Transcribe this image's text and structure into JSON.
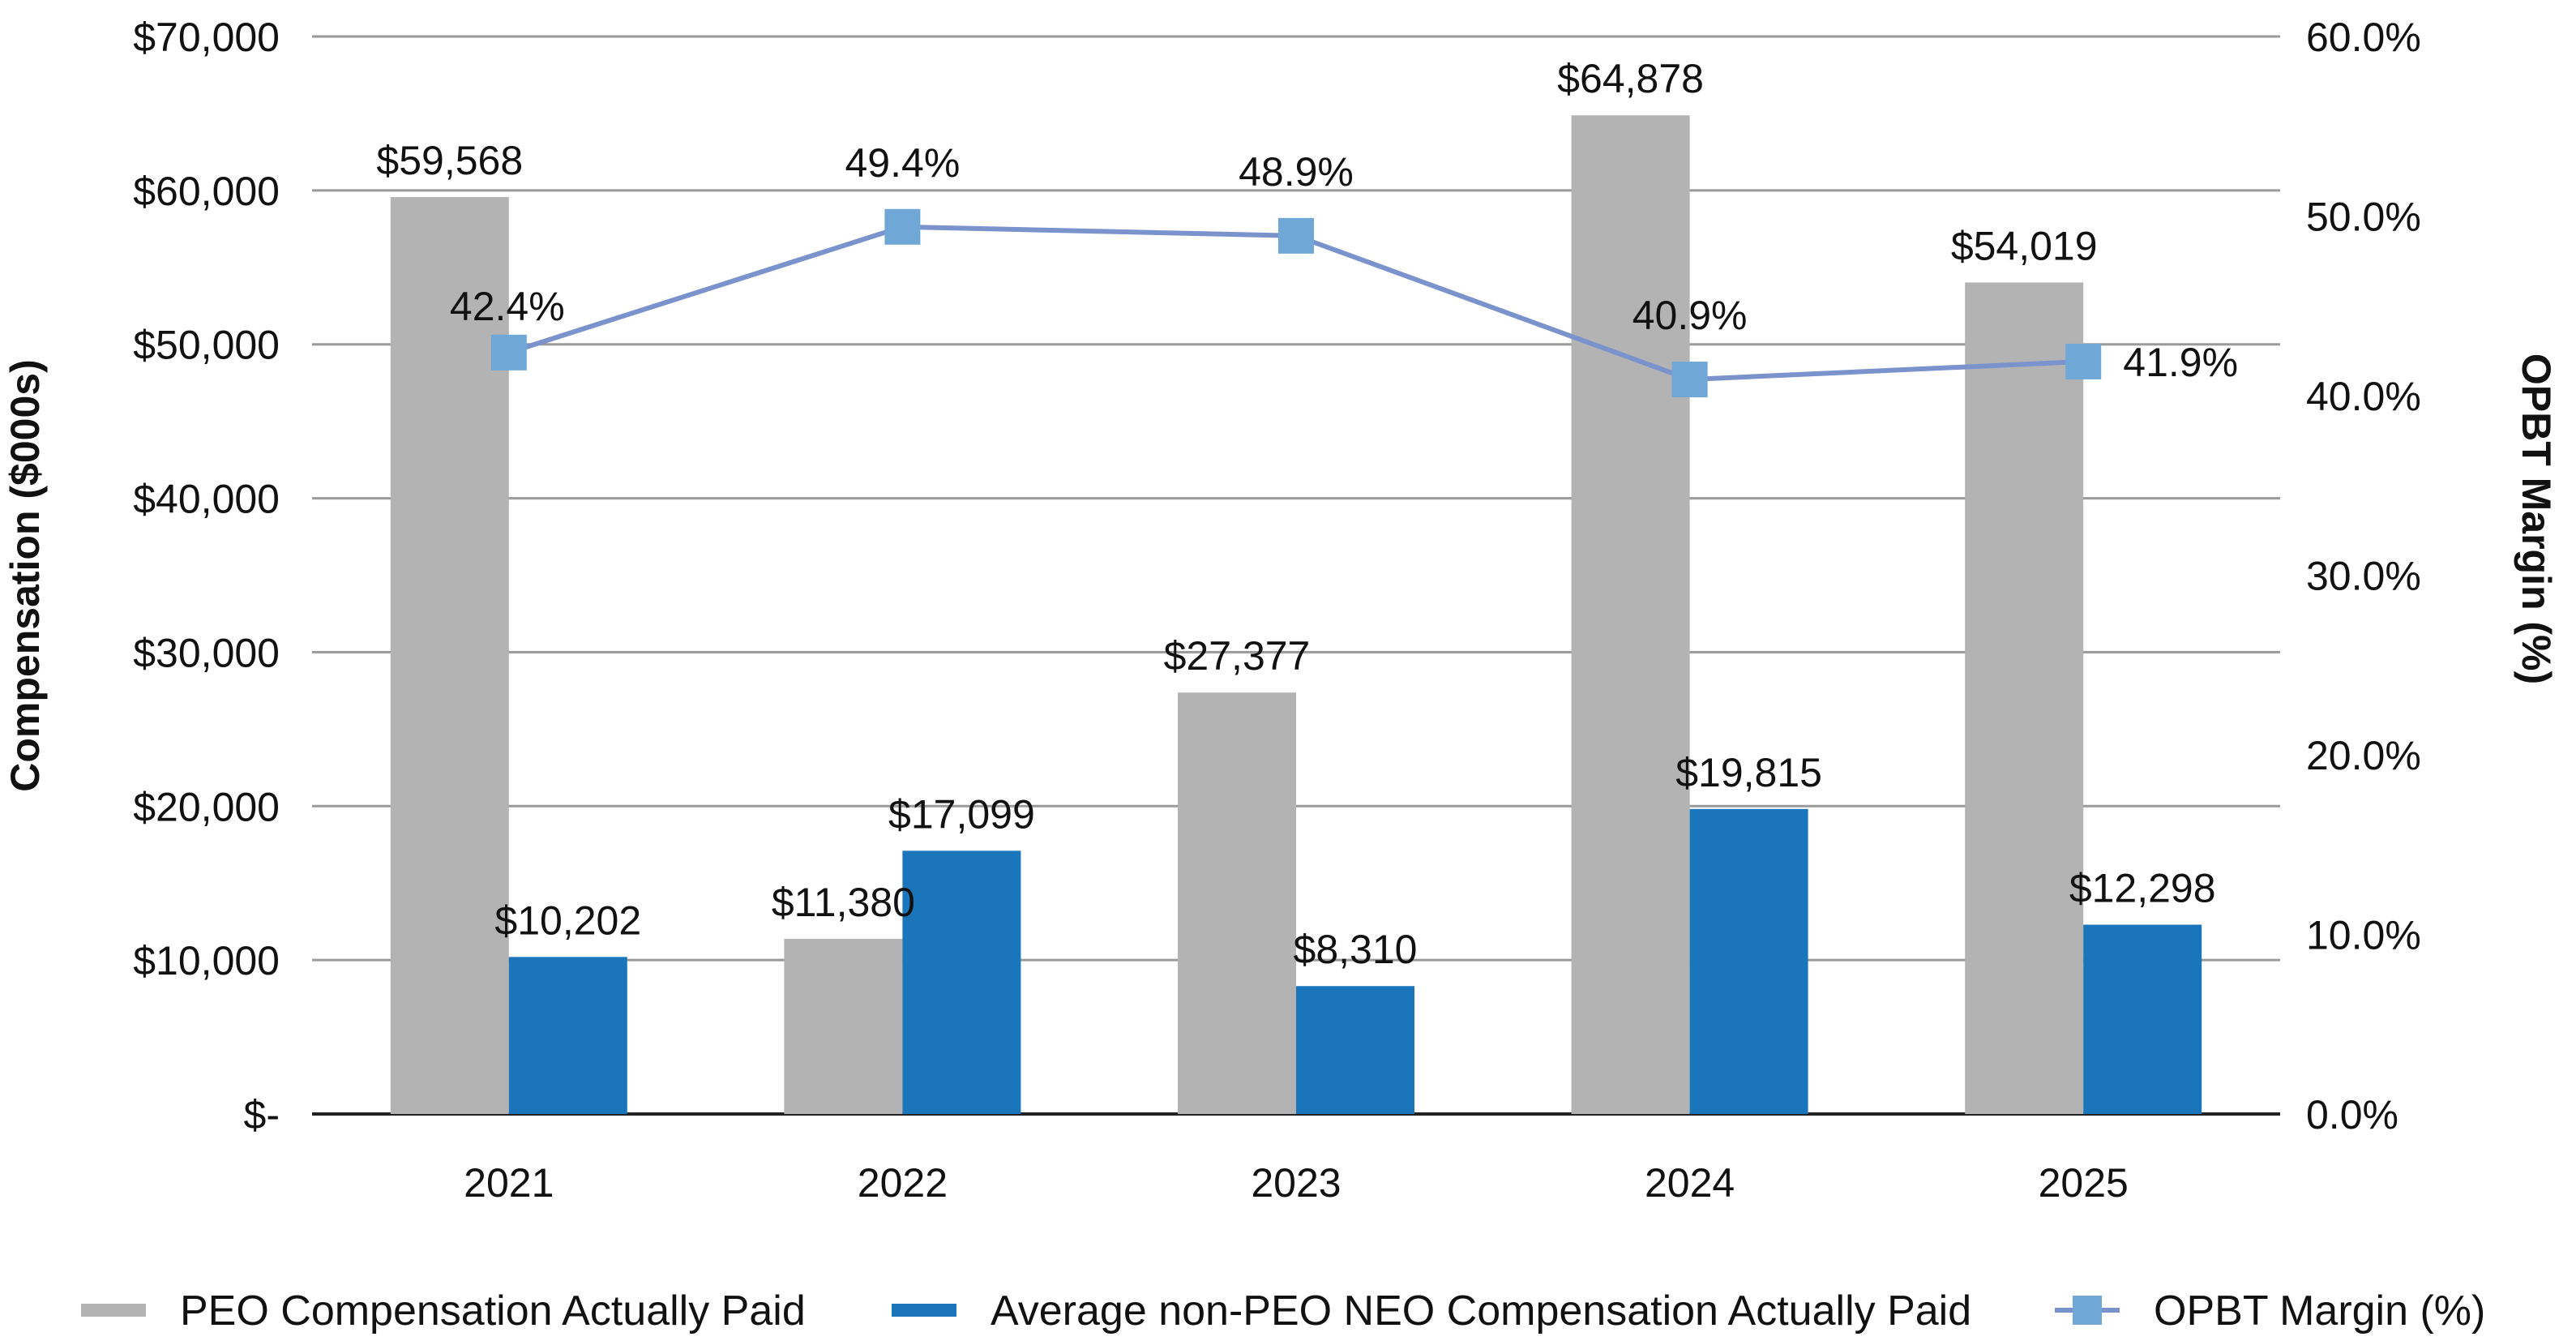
{
  "chart_data": {
    "type": "bar+line",
    "categories": [
      "2021",
      "2022",
      "2023",
      "2024",
      "2025"
    ],
    "series": [
      {
        "name": "PEO Compensation Actually Paid",
        "type": "bar",
        "axis": "left",
        "color": "#b3b3b3",
        "values": [
          59568,
          11380,
          27377,
          64878,
          54019
        ],
        "labels": [
          "$59,568",
          "$11,380",
          "$27,377",
          "$64,878",
          "$54,019"
        ]
      },
      {
        "name": "Average non-PEO NEO Compensation Actually Paid",
        "type": "bar",
        "axis": "left",
        "color": "#1b75bb",
        "values": [
          10202,
          17099,
          8310,
          19815,
          12298
        ],
        "labels": [
          "$10,202",
          "$17,099",
          "$8,310",
          "$19,815",
          "$12,298"
        ]
      },
      {
        "name": "OPBT Margin (%)",
        "type": "line",
        "axis": "right",
        "color": "#7b93cc",
        "marker_color": "#6fa8d6",
        "values": [
          42.4,
          49.4,
          48.9,
          40.9,
          41.9
        ],
        "labels": [
          "42.4%",
          "49.4%",
          "48.9%",
          "40.9%",
          "41.9%"
        ]
      }
    ],
    "ylabel": "Compensation ($000s)",
    "y2label": "OPBT Margin (%)",
    "ylim": [
      0,
      70000
    ],
    "y2lim": [
      0,
      60
    ],
    "yticks": [
      "$-",
      "$10,000",
      "$20,000",
      "$30,000",
      "$40,000",
      "$50,000",
      "$60,000",
      "$70,000"
    ],
    "y2ticks": [
      "0.0%",
      "10.0%",
      "20.0%",
      "30.0%",
      "40.0%",
      "50.0%",
      "60.0%"
    ],
    "grid": true,
    "legend": "bottom"
  }
}
